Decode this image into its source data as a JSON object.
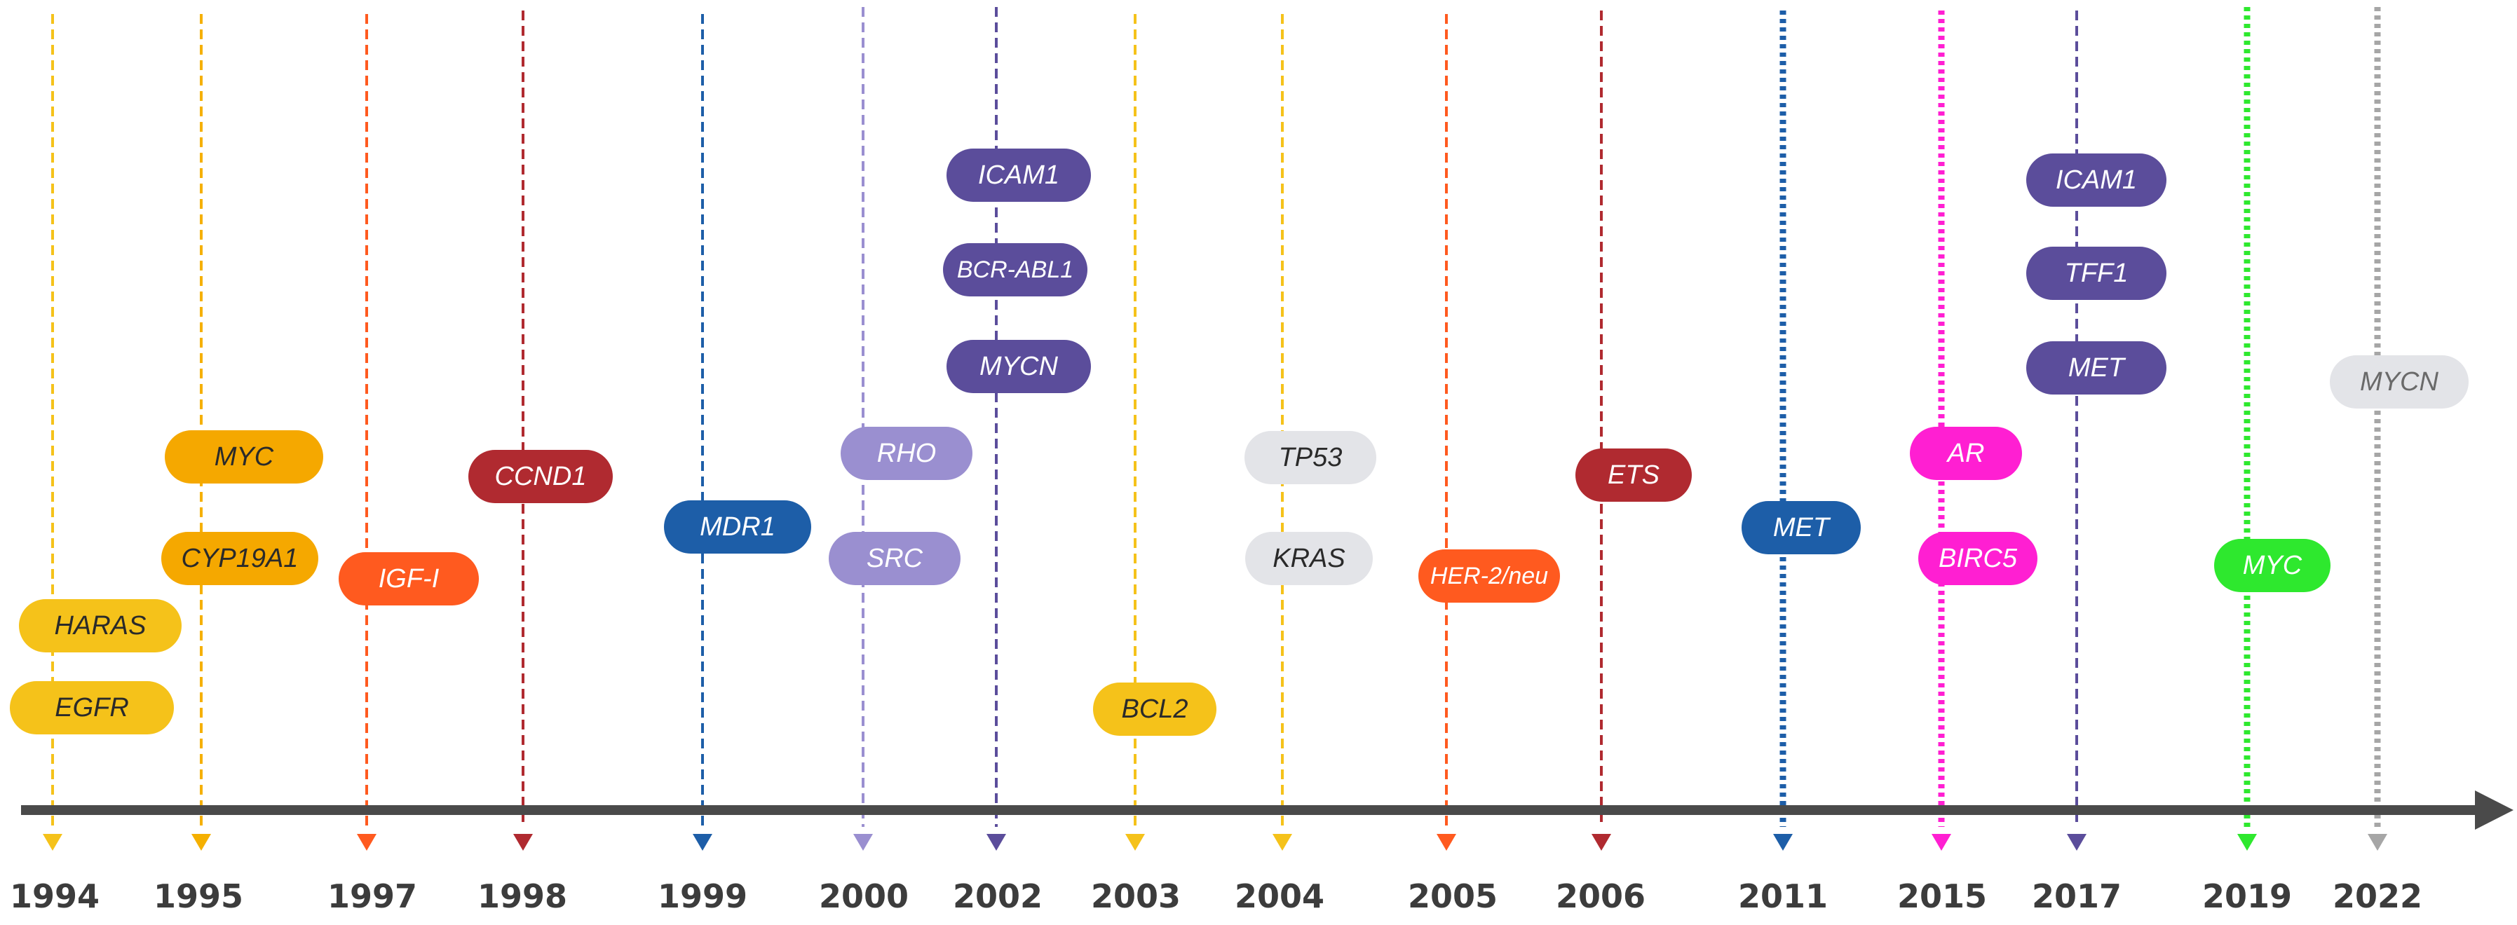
{
  "timeline": {
    "years": [
      {
        "year": "1994",
        "color": "#f5c21a",
        "style": "dashed"
      },
      {
        "year": "1995",
        "color": "#f5b000",
        "style": "dashed"
      },
      {
        "year": "1997",
        "color": "#ff5a1f",
        "style": "dashed"
      },
      {
        "year": "1998",
        "color": "#b02a30",
        "style": "dashed"
      },
      {
        "year": "1999",
        "color": "#1d5ea8",
        "style": "dashed"
      },
      {
        "year": "2000",
        "color": "#9a8fd0",
        "style": "dashed"
      },
      {
        "year": "2002",
        "color": "#5b4d9b",
        "style": "dashed"
      },
      {
        "year": "2003",
        "color": "#f5c21a",
        "style": "dashed"
      },
      {
        "year": "2004",
        "color": "#f5c21a",
        "style": "dashed"
      },
      {
        "year": "2005",
        "color": "#ff5a1f",
        "style": "dashed"
      },
      {
        "year": "2006",
        "color": "#b02a30",
        "style": "dashed"
      },
      {
        "year": "2011",
        "color": "#1d5ea8",
        "style": "dotted"
      },
      {
        "year": "2015",
        "color": "#ff1fd2",
        "style": "dotted"
      },
      {
        "year": "2017",
        "color": "#5b4d9b",
        "style": "dashed"
      },
      {
        "year": "2019",
        "color": "#2ee82e",
        "style": "dotted"
      },
      {
        "year": "2022",
        "color": "#a6a6a6",
        "style": "dotted"
      }
    ],
    "genes": [
      {
        "label": "HARAS",
        "year": "1994",
        "bg": "#f5c21a",
        "fg": "#2a2a2a"
      },
      {
        "label": "EGFR",
        "year": "1994",
        "bg": "#f5c21a",
        "fg": "#2a2a2a"
      },
      {
        "label": "MYC",
        "year": "1995",
        "bg": "#f5a800",
        "fg": "#2a2a2a"
      },
      {
        "label": "CYP19A1",
        "year": "1995",
        "bg": "#f5a800",
        "fg": "#2a2a2a"
      },
      {
        "label": "IGF-I",
        "year": "1997",
        "bg": "#ff5a1f",
        "fg": "#ffffff"
      },
      {
        "label": "CCND1",
        "year": "1998",
        "bg": "#b02a30",
        "fg": "#ffffff"
      },
      {
        "label": "MDR1",
        "year": "1999",
        "bg": "#1d5ea8",
        "fg": "#ffffff"
      },
      {
        "label": "RHO",
        "year": "2000",
        "bg": "#9a8fd0",
        "fg": "#ffffff"
      },
      {
        "label": "SRC",
        "year": "2000",
        "bg": "#9a8fd0",
        "fg": "#ffffff"
      },
      {
        "label": "ICAM1",
        "year": "2002",
        "bg": "#5b4d9b",
        "fg": "#ffffff"
      },
      {
        "label": "BCR-ABL1",
        "year": "2002",
        "bg": "#5b4d9b",
        "fg": "#ffffff"
      },
      {
        "label": "MYCN",
        "year": "2002",
        "bg": "#5b4d9b",
        "fg": "#ffffff"
      },
      {
        "label": "BCL2",
        "year": "2003",
        "bg": "#f5c21a",
        "fg": "#2a2a2a"
      },
      {
        "label": "TP53",
        "year": "2004",
        "bg": "#e3e4e8",
        "fg": "#2a2a2a"
      },
      {
        "label": "KRAS",
        "year": "2004",
        "bg": "#e3e4e8",
        "fg": "#2a2a2a"
      },
      {
        "label": "HER-2/neu",
        "year": "2005",
        "bg": "#ff5a1f",
        "fg": "#ffffff"
      },
      {
        "label": "ETS",
        "year": "2006",
        "bg": "#b02a30",
        "fg": "#ffffff"
      },
      {
        "label": "MET",
        "year": "2011",
        "bg": "#1d5ea8",
        "fg": "#ffffff"
      },
      {
        "label": "AR",
        "year": "2015",
        "bg": "#ff1fd2",
        "fg": "#ffffff"
      },
      {
        "label": "BIRC5",
        "year": "2015",
        "bg": "#ff1fd2",
        "fg": "#ffffff"
      },
      {
        "label": "ICAM1",
        "year": "2017",
        "bg": "#5b4d9b",
        "fg": "#ffffff"
      },
      {
        "label": "TFF1",
        "year": "2017",
        "bg": "#5b4d9b",
        "fg": "#ffffff"
      },
      {
        "label": "MET",
        "year": "2017",
        "bg": "#5b4d9b",
        "fg": "#ffffff"
      },
      {
        "label": "MYC",
        "year": "2019",
        "bg": "#2ee82e",
        "fg": "#ffffff"
      },
      {
        "label": "MYCN",
        "year": "2022",
        "bg": "#e3e4e8",
        "fg": "#6a6a6a"
      }
    ]
  }
}
